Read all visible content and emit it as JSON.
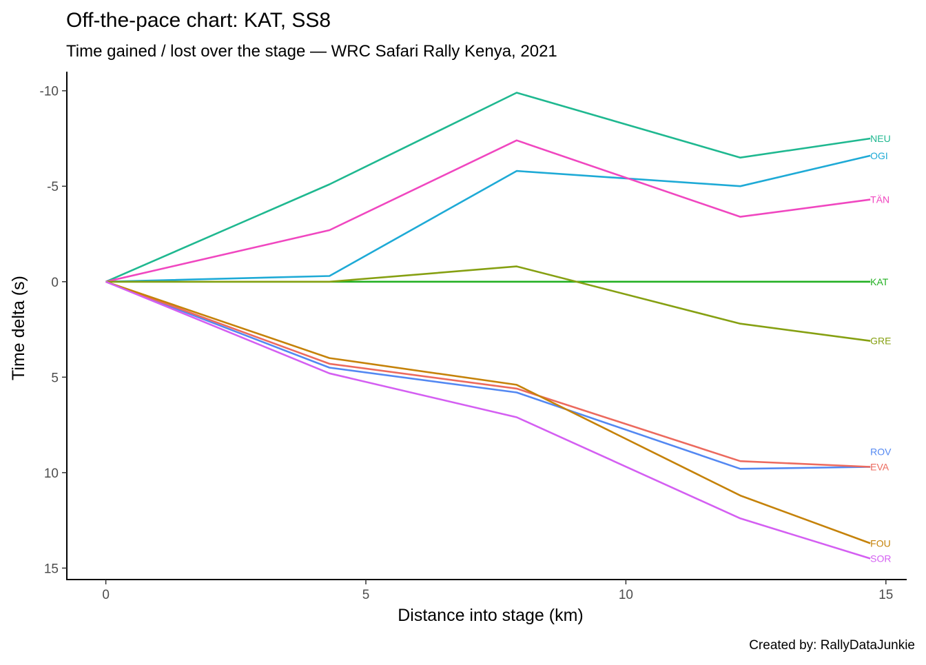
{
  "chart_data": {
    "type": "line",
    "title": "Off-the-pace chart: KAT, SS8",
    "subtitle": "Time gained / lost over the stage — WRC Safari Rally Kenya, 2021",
    "xlabel": "Distance into stage (km)",
    "ylabel": "Time delta (s)",
    "caption": "Created by: RallyDataJunkie",
    "xlim": [
      -0.75,
      15.4
    ],
    "ylim": [
      -11,
      15.6
    ],
    "y_reversed": true,
    "x_ticks": [
      0,
      5,
      10,
      15
    ],
    "x_tick_labels": [
      "0",
      "5",
      "10",
      "15"
    ],
    "y_ticks": [
      -10,
      -5,
      0,
      5,
      10,
      15
    ],
    "y_tick_labels": [
      "-10",
      "-5",
      "0",
      "5",
      "10",
      "15"
    ],
    "grid": false,
    "legend": "none",
    "x": [
      0,
      4.3,
      7.9,
      12.2,
      14.7
    ],
    "series": [
      {
        "name": "NEU",
        "color": "#1fb890",
        "values": [
          0,
          -5.1,
          -9.9,
          -6.5,
          -7.5
        ]
      },
      {
        "name": "OGI",
        "color": "#1eaad6",
        "values": [
          0,
          -0.3,
          -5.8,
          -5.0,
          -6.6
        ]
      },
      {
        "name": "TÄN",
        "color": "#f047c0",
        "values": [
          0,
          -2.7,
          -7.4,
          -3.4,
          -4.3
        ]
      },
      {
        "name": "KAT",
        "color": "#22b022",
        "values": [
          0,
          0,
          0,
          0,
          0
        ]
      },
      {
        "name": "GRE",
        "color": "#86a012",
        "values": [
          0,
          0,
          -0.8,
          2.2,
          3.1
        ]
      },
      {
        "name": "ROV",
        "color": "#5388f2",
        "values": [
          0,
          4.5,
          5.8,
          9.8,
          9.7
        ]
      },
      {
        "name": "EVA",
        "color": "#ec6a5e",
        "values": [
          0,
          4.3,
          5.6,
          9.4,
          9.7
        ]
      },
      {
        "name": "FOU",
        "color": "#c58209",
        "values": [
          0,
          4.0,
          5.4,
          11.2,
          13.7
        ]
      },
      {
        "name": "SOR",
        "color": "#d45ff2",
        "values": [
          0,
          4.8,
          7.1,
          12.4,
          14.5
        ]
      }
    ],
    "label_offsets": {
      "ROV": -0.8
    }
  }
}
